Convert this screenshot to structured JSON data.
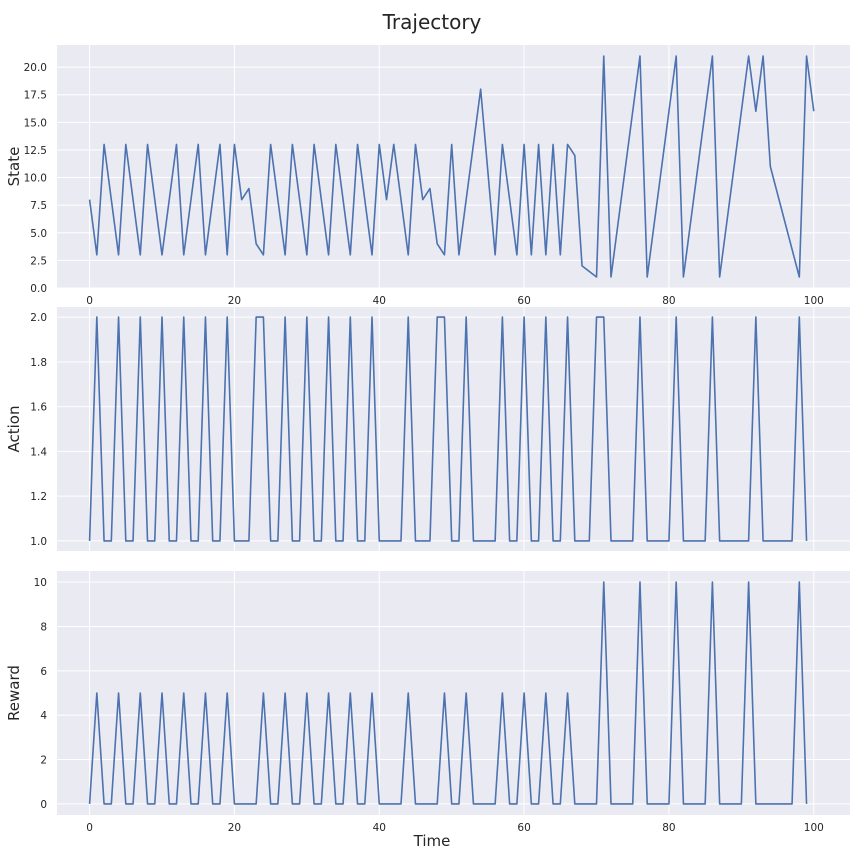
{
  "title": "Trajectory",
  "chart_data": [
    {
      "type": "line",
      "ylabel": "State",
      "xlim": [
        -4.5,
        105
      ],
      "ylim": [
        0,
        22
      ],
      "x_ticks": [
        0,
        20,
        40,
        60,
        80,
        100
      ],
      "x_tick_labels": [
        "0",
        "20",
        "40",
        "60",
        "80",
        "100"
      ],
      "y_ticks": [
        0,
        2.5,
        5,
        7.5,
        10,
        12.5,
        15,
        17.5,
        20
      ],
      "y_tick_labels": [
        "0.0",
        "2.5",
        "5.0",
        "7.5",
        "10.0",
        "12.5",
        "15.0",
        "17.5",
        "20.0"
      ],
      "grid": true,
      "x": [
        0,
        1,
        2,
        4,
        5,
        7,
        8,
        9,
        10,
        12,
        13,
        15,
        16,
        18,
        19,
        20,
        21,
        22,
        23,
        24,
        25,
        27,
        28,
        30,
        31,
        33,
        34,
        36,
        37,
        39,
        40,
        41,
        42,
        44,
        45,
        46,
        47,
        48,
        49,
        50,
        51,
        53,
        54,
        56,
        57,
        58,
        59,
        60,
        61,
        62,
        63,
        64,
        65,
        66,
        67,
        68,
        70,
        71,
        72,
        76,
        77,
        81,
        82,
        86,
        87,
        91,
        92,
        93,
        94,
        98,
        99,
        100
      ],
      "values": [
        8,
        3,
        13,
        3,
        13,
        3,
        13,
        8,
        3,
        13,
        3,
        13,
        3,
        13,
        3,
        13,
        8,
        9,
        4,
        3,
        13,
        3,
        13,
        3,
        13,
        3,
        13,
        3,
        13,
        3,
        13,
        8,
        13,
        3,
        13,
        8,
        9,
        4,
        3,
        13,
        3,
        13,
        18,
        3,
        13,
        8,
        3,
        13,
        3,
        13,
        3,
        13,
        3,
        13,
        12,
        2,
        1,
        21,
        1,
        21,
        1,
        21,
        1,
        21,
        1,
        21,
        16,
        21,
        11,
        1,
        21,
        16
      ]
    },
    {
      "type": "line",
      "ylabel": "Action",
      "xlim": [
        -4.5,
        105
      ],
      "ylim": [
        0.955,
        2.045
      ],
      "x_ticks": [
        0,
        20,
        40,
        60,
        80,
        100
      ],
      "y_ticks": [
        1.0,
        1.2,
        1.4,
        1.6,
        1.8,
        2.0
      ],
      "y_tick_labels": [
        "1.0",
        "1.2",
        "1.4",
        "1.6",
        "1.8",
        "2.0"
      ],
      "grid": true,
      "x": [
        0,
        1,
        2,
        3,
        4,
        5,
        6,
        7,
        8,
        9,
        10,
        11,
        12,
        13,
        14,
        15,
        16,
        17,
        18,
        19,
        20,
        21,
        22,
        23,
        24,
        25,
        26,
        27,
        28,
        29,
        30,
        31,
        32,
        33,
        34,
        35,
        36,
        37,
        38,
        39,
        40,
        41,
        42,
        43,
        44,
        45,
        46,
        47,
        48,
        49,
        50,
        51,
        52,
        53,
        54,
        55,
        56,
        57,
        58,
        59,
        60,
        61,
        62,
        63,
        64,
        65,
        66,
        67,
        68,
        69,
        70,
        71,
        72,
        73,
        74,
        75,
        76,
        77,
        78,
        79,
        80,
        81,
        82,
        83,
        84,
        85,
        86,
        87,
        88,
        89,
        90,
        91,
        92,
        93,
        94,
        95,
        96,
        97,
        98,
        99
      ],
      "values": [
        1,
        2,
        1,
        1,
        2,
        1,
        1,
        2,
        1,
        1,
        2,
        1,
        1,
        2,
        1,
        1,
        2,
        1,
        1,
        2,
        1,
        1,
        1,
        2,
        2,
        1,
        1,
        2,
        1,
        1,
        2,
        1,
        1,
        2,
        1,
        1,
        2,
        1,
        1,
        2,
        1,
        1,
        1,
        1,
        2,
        1,
        1,
        1,
        2,
        2,
        1,
        1,
        2,
        1,
        1,
        1,
        1,
        2,
        1,
        1,
        2,
        1,
        1,
        2,
        1,
        1,
        2,
        1,
        1,
        1,
        2,
        2,
        1,
        1,
        1,
        1,
        2,
        1,
        1,
        1,
        1,
        2,
        1,
        1,
        1,
        1,
        2,
        1,
        1,
        1,
        1,
        1,
        2,
        1,
        1,
        1,
        1,
        1,
        2,
        1
      ]
    },
    {
      "type": "line",
      "ylabel": "Reward",
      "xlim": [
        -4.5,
        105
      ],
      "ylim": [
        -0.5,
        10.5
      ],
      "x_ticks": [
        0,
        20,
        40,
        60,
        80,
        100
      ],
      "x_tick_labels": [
        "0",
        "20",
        "40",
        "60",
        "80",
        "100"
      ],
      "y_ticks": [
        0,
        2,
        4,
        6,
        8,
        10
      ],
      "y_tick_labels": [
        "0",
        "2",
        "4",
        "6",
        "8",
        "10"
      ],
      "xlabel": "Time",
      "grid": true,
      "x": [
        0,
        1,
        2,
        3,
        4,
        5,
        6,
        7,
        8,
        9,
        10,
        11,
        12,
        13,
        14,
        15,
        16,
        17,
        18,
        19,
        20,
        21,
        22,
        23,
        24,
        25,
        26,
        27,
        28,
        29,
        30,
        31,
        32,
        33,
        34,
        35,
        36,
        37,
        38,
        39,
        40,
        41,
        42,
        43,
        44,
        45,
        46,
        47,
        48,
        49,
        50,
        51,
        52,
        53,
        54,
        55,
        56,
        57,
        58,
        59,
        60,
        61,
        62,
        63,
        64,
        65,
        66,
        67,
        68,
        69,
        70,
        71,
        72,
        73,
        74,
        75,
        76,
        77,
        78,
        79,
        80,
        81,
        82,
        83,
        84,
        85,
        86,
        87,
        88,
        89,
        90,
        91,
        92,
        93,
        94,
        95,
        96,
        97,
        98,
        99
      ],
      "values": [
        0,
        5,
        0,
        0,
        5,
        0,
        0,
        5,
        0,
        0,
        5,
        0,
        0,
        5,
        0,
        0,
        5,
        0,
        0,
        5,
        0,
        0,
        0,
        0,
        5,
        0,
        0,
        5,
        0,
        0,
        5,
        0,
        0,
        5,
        0,
        0,
        5,
        0,
        0,
        5,
        0,
        0,
        0,
        0,
        5,
        0,
        0,
        0,
        0,
        5,
        0,
        0,
        5,
        0,
        0,
        0,
        0,
        5,
        0,
        0,
        5,
        0,
        0,
        5,
        0,
        0,
        5,
        0,
        0,
        0,
        0,
        10,
        0,
        0,
        0,
        0,
        10,
        0,
        0,
        0,
        0,
        10,
        0,
        0,
        0,
        0,
        10,
        0,
        0,
        0,
        0,
        10,
        0,
        0,
        0,
        0,
        0,
        0,
        10,
        0
      ]
    }
  ],
  "colors": {
    "background": "#eaeaf2",
    "grid": "#ffffff",
    "line": "#4c72b0",
    "text": "#262626"
  }
}
